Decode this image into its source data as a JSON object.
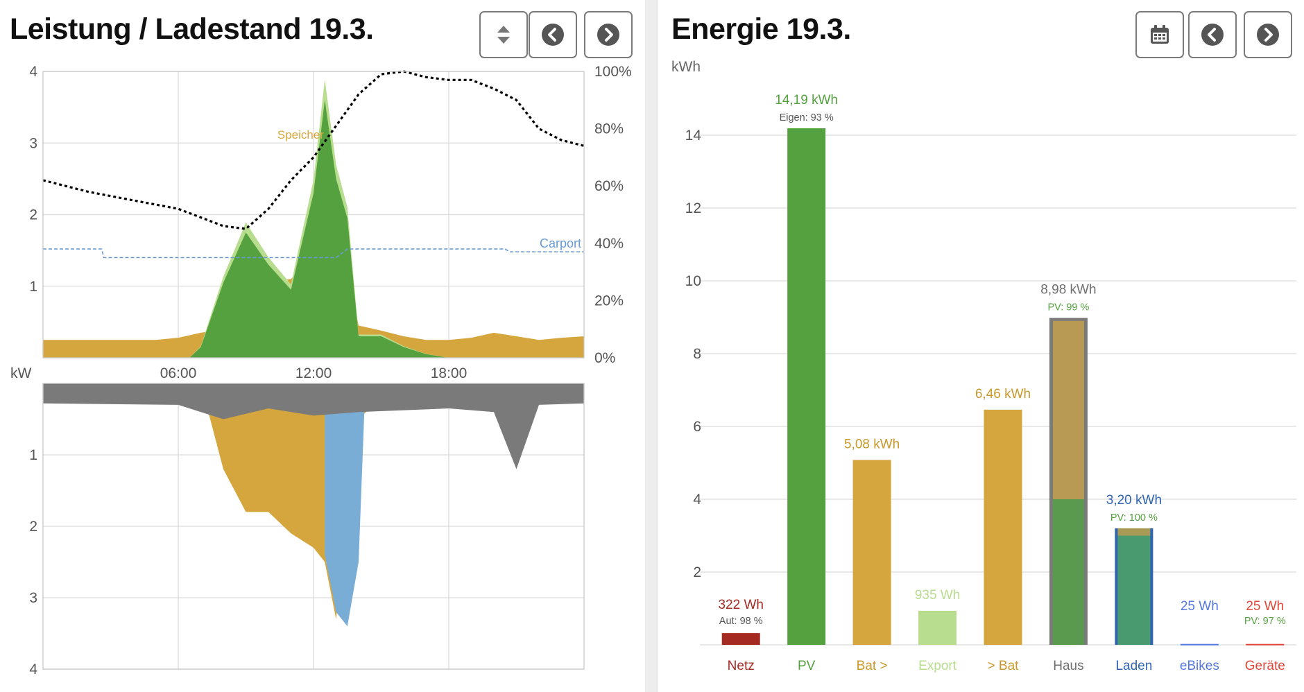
{
  "left": {
    "title": "Leistung / Ladestand 19.3.",
    "buttons": {
      "sort": "sort-icon",
      "prev": "chevron-left-circle-icon",
      "next": "chevron-right-circle-icon"
    },
    "upper_ticks": [
      "1",
      "2",
      "3",
      "4"
    ],
    "percent_ticks": [
      "0%",
      "20%",
      "40%",
      "60%",
      "80%",
      "100%"
    ],
    "time_ticks": [
      "06:00",
      "12:00",
      "18:00"
    ],
    "unit_label": "kW",
    "lower_ticks": [
      "1",
      "2",
      "3",
      "4"
    ],
    "annotations": {
      "speicher": "Speicher",
      "carport": "Carport"
    }
  },
  "right": {
    "title": "Energie 19.3.",
    "buttons": {
      "calendar": "calendar-icon",
      "prev": "chevron-left-circle-icon",
      "next": "chevron-right-circle-icon"
    },
    "unit_label": "kWh"
  },
  "chart_data": [
    {
      "type": "area",
      "title": "Leistung / Ladestand 19.3.",
      "xlabel": "",
      "ylabel": "kW",
      "x_ticks": [
        "06:00",
        "12:00",
        "18:00"
      ],
      "ylim": [
        0,
        4
      ],
      "y2lim": [
        0,
        100
      ],
      "y2_unit": "%",
      "grid": true,
      "colors": {
        "pv": "#55a13f",
        "pv_light": "#b8dd8e",
        "speicher": "#d6a63e",
        "netz": "#a52a22",
        "ladestand": "#000000",
        "carport": "#6a9bd2",
        "haus": "#7a7a7a",
        "laden": "#7aadd6"
      },
      "series_upper": [
        {
          "name": "Ladestand",
          "axis": "percent",
          "x": [
            0,
            2,
            4,
            6,
            7,
            8,
            9,
            10,
            11,
            12,
            13,
            14,
            15,
            16,
            17,
            18,
            19,
            20,
            21,
            22,
            23,
            24
          ],
          "values": [
            62,
            58,
            55,
            52,
            49,
            46,
            45,
            52,
            62,
            70,
            81,
            92,
            99,
            100,
            98,
            97,
            97,
            94,
            90,
            80,
            76,
            74
          ]
        },
        {
          "name": "Carport",
          "axis": "kW",
          "x": [
            0,
            2.6,
            2.7,
            13,
            13.5,
            20.5,
            20.7,
            24
          ],
          "values": [
            1.52,
            1.52,
            1.4,
            1.4,
            1.52,
            1.52,
            1.48,
            1.48
          ]
        },
        {
          "name": "Speicher",
          "axis": "kW",
          "x": [
            0,
            5,
            6,
            7,
            8,
            9,
            10,
            11,
            12,
            12.5,
            13,
            14,
            15,
            16,
            17,
            18,
            19,
            20,
            21,
            22,
            23,
            24
          ],
          "values": [
            0.25,
            0.25,
            0.28,
            0.35,
            0.4,
            0.5,
            1.05,
            1.1,
            1.45,
            2.6,
            2.1,
            0.45,
            0.38,
            0.3,
            0.25,
            0.25,
            0.28,
            0.35,
            0.3,
            0.25,
            0.28,
            0.3
          ]
        },
        {
          "name": "PV",
          "axis": "kW",
          "x": [
            6.5,
            7,
            8,
            9,
            10,
            11,
            12,
            12.5,
            13,
            13.5,
            14,
            15,
            16,
            17,
            18
          ],
          "values": [
            0,
            0.15,
            1.05,
            1.75,
            1.3,
            0.95,
            2.3,
            3.6,
            2.5,
            1.95,
            0.3,
            0.3,
            0.15,
            0.05,
            0
          ]
        }
      ],
      "series_lower": [
        {
          "name": "Haus",
          "axis": "kW",
          "x": [
            0,
            6,
            8,
            10,
            12,
            14,
            18,
            20,
            21,
            22,
            24
          ],
          "values": [
            0.28,
            0.3,
            0.5,
            0.35,
            0.45,
            0.4,
            0.35,
            0.4,
            1.2,
            0.3,
            0.28
          ]
        },
        {
          "name": "Speicher",
          "axis": "kW",
          "x": [
            7,
            8,
            9,
            10,
            11,
            12,
            12.5,
            13,
            14,
            15
          ],
          "values": [
            0,
            1.2,
            1.8,
            1.8,
            2.1,
            2.3,
            2.5,
            3.3,
            0.5,
            0.2
          ]
        },
        {
          "name": "Laden",
          "axis": "kW",
          "x": [
            12.5,
            13,
            13.5,
            14,
            14.3
          ],
          "values": [
            2.4,
            3.2,
            3.4,
            2.5,
            0
          ]
        }
      ]
    },
    {
      "type": "bar",
      "title": "Energie 19.3.",
      "ylabel": "kWh",
      "ylim": [
        0,
        16
      ],
      "y_ticks": [
        "2",
        "4",
        "6",
        "8",
        "10",
        "12",
        "14"
      ],
      "categories": [
        "Netz",
        "PV",
        "Bat >",
        "Export",
        "> Bat",
        "Haus",
        "Laden",
        "eBikes",
        "Geräte"
      ],
      "values": [
        0.322,
        14.19,
        5.08,
        0.935,
        6.46,
        8.98,
        3.2,
        0.025,
        0.025
      ],
      "labels": [
        "322 Wh",
        "14,19 kWh",
        "5,08 kWh",
        "935 Wh",
        "6,46 kWh",
        "8,98 kWh",
        "3,20 kWh",
        "25 Wh",
        "25 Wh"
      ],
      "sublabels": [
        "Aut: 98 %",
        "Eigen: 93 %",
        "",
        "",
        "",
        "PV: 99 %",
        "PV: 100 %",
        "",
        "PV: 97 %"
      ],
      "colors": [
        "#a52a22",
        "#55a13f",
        "#d6a63e",
        "#b8dd8e",
        "#d6a63e",
        "#7a7a7a",
        "#2f64b0",
        "#5577e0",
        "#e0473a"
      ],
      "label_colors": [
        "#a52a22",
        "#55a13f",
        "#c9982b",
        "#b8dd8e",
        "#c9982b",
        "#6f6f6f",
        "#2f64b0",
        "#5577e0",
        "#e0473a"
      ],
      "sublabel_colors": [
        "#555555",
        "#555555",
        "",
        "",
        "",
        "#55a13f",
        "#55a13f",
        "",
        "#55a13f"
      ],
      "haus_split": {
        "speicher": 4.9,
        "pv": 4.0
      },
      "laden_split": {
        "pv": 3.0,
        "speicher": 0.2
      }
    }
  ]
}
